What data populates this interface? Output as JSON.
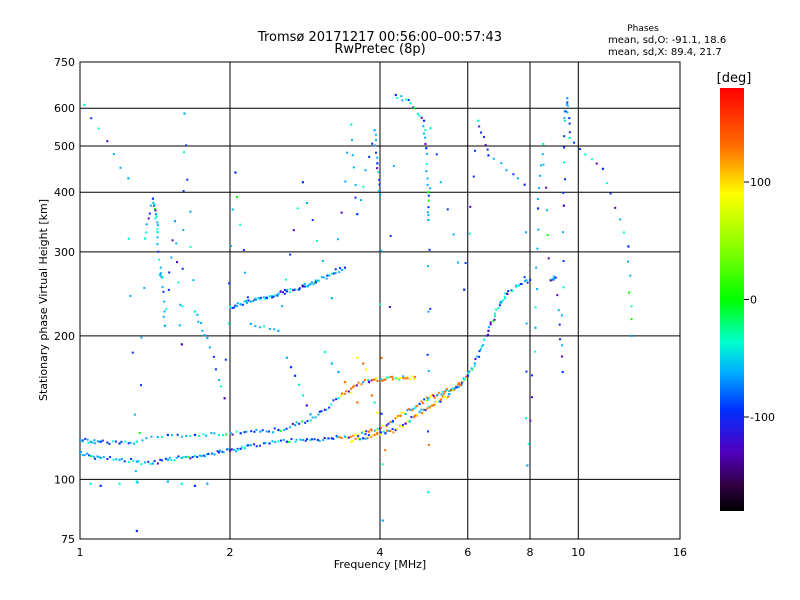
{
  "chart_data": {
    "type": "scatter",
    "title": "Tromsø 20171217 00:56:00–00:57:43",
    "subtitle": "RwPretec (8p)",
    "xlabel": "Frequency [MHz]",
    "ylabel": "Stationary phase Virtual Height [km]",
    "x_scale": "log",
    "y_scale": "log",
    "xlim": [
      1,
      16
    ],
    "ylim": [
      75,
      750
    ],
    "x_ticks": [
      1,
      2,
      4,
      6,
      8,
      10,
      16
    ],
    "y_ticks": [
      75,
      100,
      200,
      300,
      400,
      500,
      600,
      750
    ],
    "grid": true,
    "stats": {
      "heading": "Phases",
      "line_o": "mean, sd,O: -91.1, 18.6",
      "line_x": "mean, sd,X:  89.4, 21.7"
    },
    "colorbar": {
      "label": "[deg]",
      "ticks": [
        100,
        0,
        -100
      ],
      "range": [
        -180,
        180
      ]
    },
    "series": [
      {
        "name": "",
        "points": [
          [
            1.0,
            114
          ],
          [
            1.05,
            112
          ],
          [
            1.1,
            111
          ],
          [
            1.2,
            110
          ],
          [
            1.3,
            109
          ],
          [
            1.4,
            108
          ],
          [
            1.5,
            110
          ],
          [
            1.6,
            111
          ],
          [
            1.7,
            112
          ],
          [
            1.8,
            113
          ],
          [
            1.9,
            114
          ],
          [
            2.0,
            115
          ],
          [
            2.1,
            116
          ],
          [
            2.2,
            118
          ],
          [
            2.4,
            119
          ],
          [
            2.6,
            120
          ],
          [
            2.8,
            121
          ],
          [
            3.0,
            121
          ],
          [
            3.2,
            122
          ],
          [
            3.4,
            123
          ],
          [
            3.6,
            124
          ],
          [
            3.8,
            126
          ],
          [
            4.0,
            128
          ],
          [
            4.2,
            132
          ],
          [
            4.4,
            136
          ],
          [
            4.6,
            140
          ],
          [
            4.8,
            144
          ],
          [
            5.0,
            148
          ],
          [
            5.2,
            150
          ],
          [
            5.4,
            153
          ],
          [
            5.6,
            155
          ],
          [
            5.8,
            158
          ],
          [
            6.0,
            165
          ],
          [
            6.2,
            175
          ],
          [
            6.4,
            190
          ],
          [
            6.6,
            205
          ],
          [
            6.8,
            220
          ],
          [
            7.0,
            235
          ],
          [
            7.2,
            245
          ],
          [
            7.6,
            255
          ],
          [
            8.0,
            262
          ]
        ]
      },
      {
        "name": "",
        "points": [
          [
            1.0,
            121
          ],
          [
            1.05,
            120
          ],
          [
            1.1,
            120
          ],
          [
            1.2,
            119
          ],
          [
            1.3,
            120
          ],
          [
            1.5,
            124
          ],
          [
            1.7,
            124
          ],
          [
            1.9,
            124
          ],
          [
            2.1,
            125
          ],
          [
            2.3,
            126
          ],
          [
            2.5,
            127
          ],
          [
            2.7,
            130
          ],
          [
            2.9,
            133
          ],
          [
            3.1,
            140
          ],
          [
            3.3,
            148
          ],
          [
            3.5,
            155
          ],
          [
            3.7,
            160
          ],
          [
            3.9,
            162
          ],
          [
            4.1,
            162
          ],
          [
            4.3,
            163
          ],
          [
            4.5,
            163
          ],
          [
            4.7,
            164
          ]
        ]
      },
      {
        "name": "",
        "points": [
          [
            1.05,
            98
          ],
          [
            1.1,
            97
          ],
          [
            1.2,
            98
          ],
          [
            1.3,
            99
          ],
          [
            1.5,
            99
          ],
          [
            1.6,
            98
          ],
          [
            1.7,
            97
          ],
          [
            1.8,
            98
          ]
        ]
      },
      {
        "name": "",
        "points": [
          [
            2.0,
            230
          ],
          [
            2.1,
            233
          ],
          [
            2.2,
            236
          ],
          [
            2.3,
            239
          ],
          [
            2.4,
            242
          ],
          [
            2.5,
            245
          ],
          [
            2.6,
            248
          ],
          [
            2.7,
            250
          ],
          [
            2.8,
            254
          ],
          [
            2.9,
            257
          ],
          [
            3.0,
            261
          ],
          [
            3.2,
            270
          ],
          [
            3.4,
            278
          ]
        ]
      },
      {
        "name": "",
        "points": [
          [
            3.5,
            120
          ],
          [
            3.7,
            122
          ],
          [
            3.9,
            124
          ],
          [
            4.1,
            125
          ],
          [
            4.3,
            127
          ],
          [
            4.5,
            131
          ],
          [
            4.7,
            136
          ],
          [
            4.9,
            140
          ],
          [
            5.1,
            143
          ],
          [
            5.3,
            147
          ],
          [
            5.5,
            151
          ],
          [
            5.7,
            156
          ],
          [
            5.9,
            162
          ]
        ]
      },
      {
        "name": "",
        "points": [
          [
            3.6,
            180
          ],
          [
            3.7,
            175
          ],
          [
            3.75,
            170
          ],
          [
            3.8,
            160
          ],
          [
            3.85,
            150
          ],
          [
            3.9,
            145
          ],
          [
            3.95,
            138
          ]
        ]
      },
      {
        "name": "",
        "points": [
          [
            2.6,
            180
          ],
          [
            2.65,
            172
          ],
          [
            2.7,
            165
          ],
          [
            2.75,
            158
          ],
          [
            2.8,
            150
          ],
          [
            2.85,
            143
          ],
          [
            2.9,
            137
          ]
        ]
      },
      {
        "name": "",
        "points": [
          [
            3.1,
            185
          ],
          [
            3.2,
            175
          ],
          [
            3.3,
            168
          ],
          [
            3.4,
            160
          ],
          [
            3.5,
            152
          ],
          [
            3.6,
            145
          ]
        ]
      },
      {
        "name": "",
        "points": [
          [
            1.02,
            610
          ],
          [
            1.25,
            428
          ],
          [
            1.3,
            78
          ],
          [
            1.35,
            320
          ],
          [
            1.4,
            388
          ],
          [
            1.42,
            360
          ],
          [
            1.43,
            330
          ],
          [
            1.45,
            270
          ],
          [
            1.46,
            265
          ],
          [
            1.48,
            210
          ],
          [
            1.55,
            348
          ],
          [
            1.6,
            192
          ],
          [
            1.62,
            585
          ],
          [
            1.7,
            225
          ],
          [
            1.8,
            198
          ],
          [
            1.95,
            148
          ],
          [
            2.05,
            440
          ],
          [
            2.2,
            212
          ],
          [
            2.5,
            205
          ],
          [
            2.8,
            420
          ],
          [
            3.2,
            240
          ],
          [
            3.5,
            555
          ],
          [
            3.6,
            360
          ],
          [
            3.9,
            540
          ],
          [
            3.95,
            460
          ],
          [
            4.0,
            395
          ],
          [
            4.05,
            82
          ],
          [
            4.3,
            640
          ],
          [
            4.6,
            615
          ],
          [
            4.9,
            565
          ],
          [
            4.95,
            495
          ],
          [
            5.0,
            400
          ],
          [
            5.0,
            350
          ],
          [
            5.0,
            94
          ],
          [
            5.05,
            545
          ],
          [
            5.9,
            250
          ],
          [
            6.3,
            565
          ],
          [
            6.6,
            478
          ],
          [
            7.8,
            415
          ],
          [
            7.9,
            107
          ],
          [
            8.2,
            208
          ],
          [
            8.3,
            370
          ],
          [
            8.5,
            505
          ],
          [
            8.8,
            262
          ],
          [
            9.0,
            265
          ],
          [
            9.3,
            168
          ],
          [
            9.35,
            375
          ],
          [
            9.4,
            565
          ],
          [
            9.5,
            630
          ],
          [
            9.6,
            520
          ],
          [
            11.2,
            448
          ],
          [
            12.6,
            308
          ],
          [
            12.8,
            200
          ]
        ]
      }
    ]
  }
}
